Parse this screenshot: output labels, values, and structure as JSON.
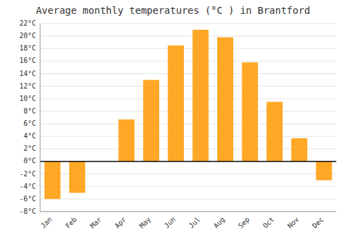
{
  "chart_data": {
    "type": "bar",
    "title": "Average monthly temperatures (°C ) in Brantford",
    "categories": [
      "Jan",
      "Feb",
      "Mar",
      "Apr",
      "May",
      "Jun",
      "Jul",
      "Aug",
      "Sep",
      "Oct",
      "Nov",
      "Dec"
    ],
    "values": [
      -6.0,
      -5.0,
      0.0,
      6.7,
      13.0,
      18.5,
      21.0,
      19.8,
      15.8,
      9.5,
      3.7,
      -3.0
    ],
    "color": "#FFA726",
    "ylim": [
      -8,
      22
    ],
    "yticks": [
      {
        "value": -8,
        "label": "-8°C"
      },
      {
        "value": -6,
        "label": "-6°C"
      },
      {
        "value": -4,
        "label": "-4°C"
      },
      {
        "value": -2,
        "label": "-2°C"
      },
      {
        "value": 0,
        "label": "0°C"
      },
      {
        "value": 2,
        "label": "2°C"
      },
      {
        "value": 4,
        "label": "4°C"
      },
      {
        "value": 6,
        "label": "6°C"
      },
      {
        "value": 8,
        "label": "8°C"
      },
      {
        "value": 10,
        "label": "10°C"
      },
      {
        "value": 12,
        "label": "12°C"
      },
      {
        "value": 14,
        "label": "14°C"
      },
      {
        "value": 16,
        "label": "16°C"
      },
      {
        "value": 18,
        "label": "18°C"
      },
      {
        "value": 20,
        "label": "20°C"
      },
      {
        "value": 22,
        "label": "22°C"
      }
    ],
    "grid": true
  }
}
